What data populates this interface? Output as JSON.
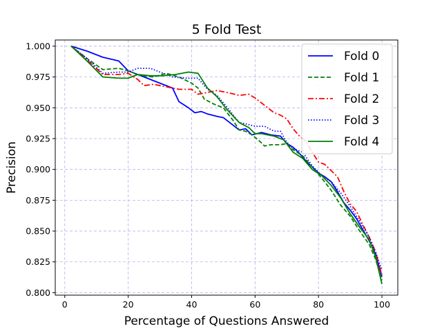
{
  "chart_data": {
    "type": "line",
    "title": "5 Fold Test",
    "xlabel": "Percentage of Questions Answered",
    "ylabel": "Precision",
    "xlim": [
      -3,
      105
    ],
    "ylim": [
      0.798,
      1.005
    ],
    "xticks": [
      0,
      20,
      40,
      60,
      80,
      100
    ],
    "yticks": [
      0.8,
      0.825,
      0.85,
      0.875,
      0.9,
      0.925,
      0.95,
      0.975,
      1.0
    ],
    "xtick_labels": [
      "0",
      "20",
      "40",
      "60",
      "80",
      "100"
    ],
    "ytick_labels": [
      "0.800",
      "0.825",
      "0.850",
      "0.875",
      "0.900",
      "0.925",
      "0.950",
      "0.975",
      "1.000"
    ],
    "grid": true,
    "legend_position": "top-right",
    "series": [
      {
        "name": "Fold 0",
        "color": "#0000ff",
        "style": "solid",
        "x": [
          2,
          7,
          12,
          17,
          20,
          25,
          30,
          34,
          36,
          39,
          41,
          43,
          45,
          48,
          50,
          53,
          55,
          57,
          59,
          62,
          65,
          68,
          70,
          72,
          74,
          76,
          78,
          80,
          82,
          84,
          86,
          88,
          90,
          92,
          94,
          96,
          98,
          100
        ],
        "y": [
          1.0,
          0.996,
          0.991,
          0.988,
          0.98,
          0.975,
          0.97,
          0.966,
          0.955,
          0.95,
          0.946,
          0.947,
          0.945,
          0.943,
          0.942,
          0.936,
          0.932,
          0.933,
          0.928,
          0.93,
          0.928,
          0.927,
          0.921,
          0.918,
          0.913,
          0.907,
          0.902,
          0.897,
          0.894,
          0.89,
          0.882,
          0.873,
          0.867,
          0.86,
          0.851,
          0.842,
          0.831,
          0.813
        ]
      },
      {
        "name": "Fold 1",
        "color": "#008000",
        "style": "dashed",
        "x": [
          2,
          7,
          12,
          17,
          20,
          24,
          28,
          32,
          36,
          40,
          42,
          44,
          47,
          50,
          53,
          55,
          57,
          59,
          61,
          63,
          65,
          68,
          70,
          72,
          75,
          78,
          81,
          84,
          87,
          90,
          93,
          96,
          98,
          100
        ],
        "y": [
          1.0,
          0.99,
          0.981,
          0.982,
          0.98,
          0.976,
          0.975,
          0.978,
          0.975,
          0.97,
          0.966,
          0.957,
          0.953,
          0.95,
          0.94,
          0.932,
          0.931,
          0.928,
          0.924,
          0.919,
          0.92,
          0.92,
          0.921,
          0.916,
          0.911,
          0.902,
          0.893,
          0.883,
          0.871,
          0.862,
          0.85,
          0.839,
          0.827,
          0.81
        ]
      },
      {
        "name": "Fold 2",
        "color": "#ff0000",
        "style": "dashdot",
        "x": [
          2,
          7,
          12,
          17,
          20,
          23,
          25,
          28,
          32,
          36,
          40,
          42,
          44,
          48,
          52,
          55,
          58,
          60,
          62,
          64,
          66,
          68,
          70,
          72,
          74,
          76,
          78,
          80,
          82,
          84,
          86,
          88,
          90,
          92,
          94,
          96,
          98,
          100
        ],
        "y": [
          1.0,
          0.989,
          0.977,
          0.977,
          0.978,
          0.973,
          0.968,
          0.969,
          0.967,
          0.965,
          0.965,
          0.961,
          0.962,
          0.964,
          0.962,
          0.96,
          0.961,
          0.958,
          0.954,
          0.95,
          0.946,
          0.944,
          0.941,
          0.933,
          0.927,
          0.923,
          0.914,
          0.906,
          0.904,
          0.899,
          0.894,
          0.882,
          0.872,
          0.866,
          0.855,
          0.845,
          0.833,
          0.814
        ]
      },
      {
        "name": "Fold 3",
        "color": "#0000ff",
        "style": "dotted",
        "x": [
          2,
          7,
          12,
          17,
          20,
          23,
          27,
          30,
          34,
          38,
          42,
          45,
          48,
          51,
          55,
          57,
          60,
          63,
          66,
          68,
          70,
          72,
          75,
          78,
          81,
          84,
          87,
          90,
          93,
          96,
          98,
          100
        ],
        "y": [
          1.0,
          0.99,
          0.978,
          0.979,
          0.979,
          0.982,
          0.982,
          0.979,
          0.975,
          0.974,
          0.974,
          0.965,
          0.96,
          0.951,
          0.938,
          0.937,
          0.935,
          0.935,
          0.931,
          0.931,
          0.922,
          0.917,
          0.914,
          0.903,
          0.895,
          0.89,
          0.881,
          0.87,
          0.858,
          0.845,
          0.833,
          0.818
        ]
      },
      {
        "name": "Fold 4",
        "color": "#008000",
        "style": "solid",
        "x": [
          2,
          7,
          12,
          17,
          20,
          23,
          27,
          31,
          35,
          39,
          42,
          45,
          48,
          51,
          55,
          58,
          60,
          62,
          64,
          66,
          69,
          72,
          75,
          78,
          81,
          84,
          87,
          90,
          93,
          96,
          98,
          100
        ],
        "y": [
          1.0,
          0.988,
          0.975,
          0.974,
          0.974,
          0.977,
          0.976,
          0.976,
          0.977,
          0.979,
          0.978,
          0.966,
          0.959,
          0.949,
          0.938,
          0.934,
          0.929,
          0.929,
          0.928,
          0.927,
          0.924,
          0.914,
          0.909,
          0.9,
          0.895,
          0.887,
          0.877,
          0.864,
          0.853,
          0.843,
          0.829,
          0.807
        ]
      }
    ]
  }
}
